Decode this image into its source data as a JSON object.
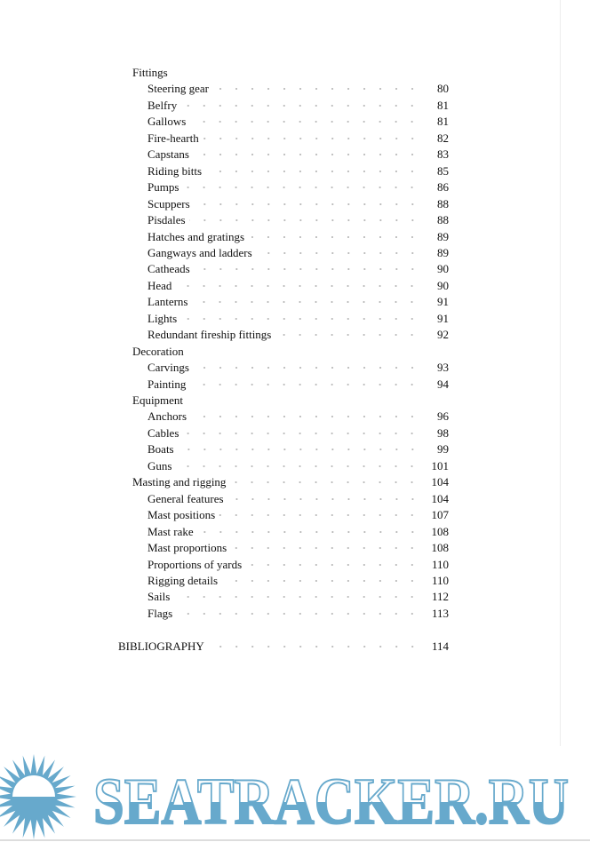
{
  "toc": [
    {
      "level": 1,
      "title": "Fittings"
    },
    {
      "level": 2,
      "title": "Steering gear",
      "page": "80"
    },
    {
      "level": 2,
      "title": "Belfry",
      "page": "81"
    },
    {
      "level": 2,
      "title": "Gallows",
      "page": "81"
    },
    {
      "level": 2,
      "title": "Fire-hearth",
      "page": "82"
    },
    {
      "level": 2,
      "title": "Capstans",
      "page": "83"
    },
    {
      "level": 2,
      "title": "Riding bitts",
      "page": "85"
    },
    {
      "level": 2,
      "title": "Pumps",
      "page": "86"
    },
    {
      "level": 2,
      "title": "Scuppers",
      "page": "88"
    },
    {
      "level": 2,
      "title": "Pisdales",
      "page": "88"
    },
    {
      "level": 2,
      "title": "Hatches and gratings",
      "page": "89"
    },
    {
      "level": 2,
      "title": "Gangways and ladders",
      "page": "89"
    },
    {
      "level": 2,
      "title": "Catheads",
      "page": "90"
    },
    {
      "level": 2,
      "title": "Head",
      "page": "90"
    },
    {
      "level": 2,
      "title": "Lanterns",
      "page": "91"
    },
    {
      "level": 2,
      "title": "Lights",
      "page": "91"
    },
    {
      "level": 2,
      "title": "Redundant fireship fittings",
      "page": "92"
    },
    {
      "level": 1,
      "title": "Decoration"
    },
    {
      "level": 2,
      "title": "Carvings",
      "page": "93"
    },
    {
      "level": 2,
      "title": "Painting",
      "page": "94"
    },
    {
      "level": 1,
      "title": "Equipment"
    },
    {
      "level": 2,
      "title": "Anchors",
      "page": "96"
    },
    {
      "level": 2,
      "title": "Cables",
      "page": "98"
    },
    {
      "level": 2,
      "title": "Boats",
      "page": "99"
    },
    {
      "level": 2,
      "title": "Guns",
      "page": "101"
    },
    {
      "level": 1,
      "title": "Masting and rigging",
      "page": "104"
    },
    {
      "level": 2,
      "title": "General features",
      "page": "104"
    },
    {
      "level": 2,
      "title": "Mast positions",
      "page": "107"
    },
    {
      "level": 2,
      "title": "Mast rake",
      "page": "108"
    },
    {
      "level": 2,
      "title": "Mast proportions",
      "page": "108"
    },
    {
      "level": 2,
      "title": "Proportions of yards",
      "page": "110"
    },
    {
      "level": 2,
      "title": "Rigging details",
      "page": "110"
    },
    {
      "level": 2,
      "title": "Sails",
      "page": "112"
    },
    {
      "level": 2,
      "title": "Flags",
      "page": "113"
    }
  ],
  "bibliography": {
    "title": "BIBLIOGRAPHY",
    "page": "114"
  },
  "watermark": {
    "text": "SEATRACKER.RU",
    "color": "#67a9cc",
    "icon": "sun-icon"
  }
}
